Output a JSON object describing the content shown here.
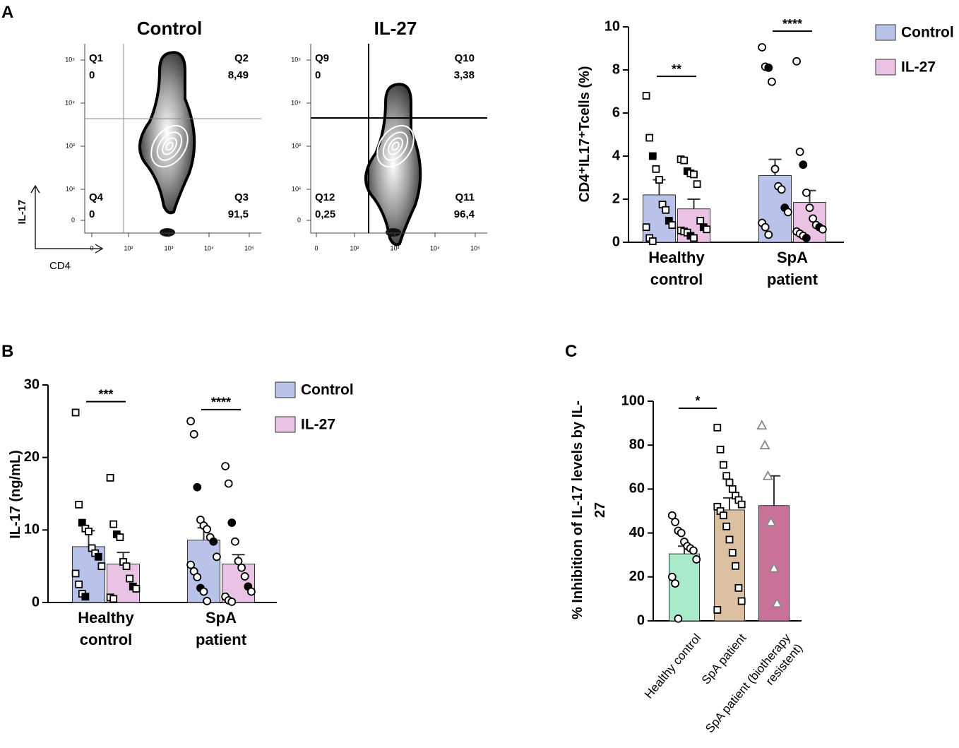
{
  "panels": [
    "A",
    "B",
    "C"
  ],
  "chart_data": [
    {
      "type": "flow",
      "title": "Control",
      "xlabel": "CD4",
      "ylabel": "IL-17",
      "xticks": [
        {
          "value": 0,
          "label": "0"
        },
        {
          "value": 100,
          "label": "10²"
        },
        {
          "value": 1000,
          "label": "10³"
        },
        {
          "value": 10000,
          "label": "10⁴"
        },
        {
          "value": 100000,
          "label": "10⁵"
        }
      ],
      "yticks": [
        {
          "value": 0,
          "label": "0"
        },
        {
          "value": 100,
          "label": "10²"
        },
        {
          "value": 1000,
          "label": "10³"
        },
        {
          "value": 10000,
          "label": "10⁴"
        },
        {
          "value": 100000,
          "label": "10⁵"
        }
      ],
      "quadrant_names": [
        "Q1",
        "Q2",
        "Q4",
        "Q3"
      ],
      "values": [
        0,
        8.49,
        0,
        91.5
      ],
      "value_labels": [
        "0",
        "8,49",
        "0",
        "91,5"
      ]
    },
    {
      "type": "flow",
      "title": "IL-27",
      "xticks": [
        {
          "value": 0,
          "label": "0"
        },
        {
          "value": 100,
          "label": "10²"
        },
        {
          "value": 1000,
          "label": "10³"
        },
        {
          "value": 10000,
          "label": "10⁴"
        },
        {
          "value": 100000,
          "label": "10⁵"
        }
      ],
      "yticks": [
        {
          "value": 0,
          "label": "0"
        },
        {
          "value": 100,
          "label": "10²"
        },
        {
          "value": 1000,
          "label": "10³"
        },
        {
          "value": 10000,
          "label": "10⁴"
        },
        {
          "value": 100000,
          "label": "10⁵"
        }
      ],
      "quadrant_names": [
        "Q9",
        "Q10",
        "Q12",
        "Q11"
      ],
      "values": [
        0,
        3.38,
        0.25,
        96.4
      ],
      "value_labels": [
        "0",
        "3,38",
        "0,25",
        "96,4"
      ]
    },
    {
      "type": "bar",
      "ylabel": "CD4⁺IL17⁺Tcells (%)",
      "categories": [
        "Healthy control",
        "SpA patient"
      ],
      "ylim": [
        0,
        10
      ],
      "yticks": [
        0,
        2,
        4,
        6,
        8,
        10
      ],
      "point_markers": [
        "square",
        "circle"
      ],
      "series": [
        {
          "name": "Control",
          "color": "#b9c3ea",
          "values": [
            2.2,
            3.1
          ],
          "errors": [
            0.7,
            0.75
          ],
          "points": [
            [
              6.8,
              4.85,
              4.0,
              3.4,
              2.9,
              1.75,
              1.5,
              1.0,
              0.8,
              0.7,
              0.2,
              0.05
            ],
            [
              9.05,
              8.15,
              8.1,
              7.45,
              3.4,
              2.6,
              2.45,
              1.6,
              1.4,
              0.9,
              0.7,
              0.35
            ]
          ]
        },
        {
          "name": "IL-27",
          "color": "#e9c2e4",
          "values": [
            1.55,
            1.85
          ],
          "errors": [
            0.45,
            0.55
          ],
          "points": [
            [
              3.85,
              3.8,
              3.3,
              3.2,
              3.15,
              2.7,
              1.0,
              0.7,
              0.6,
              0.55,
              0.5,
              0.45,
              0.3,
              0.2
            ],
            [
              8.4,
              4.2,
              3.6,
              2.3,
              1.6,
              1.1,
              0.8,
              0.7,
              0.6,
              0.5,
              0.4,
              0.3,
              0.2
            ]
          ]
        }
      ],
      "annotations": [
        {
          "text": "**",
          "category": 0,
          "y": 7.7
        },
        {
          "text": "****",
          "category": 1,
          "y": 9.8
        }
      ]
    },
    {
      "type": "bar",
      "ylabel": "IL-17 (ng/mL)",
      "categories": [
        "Healthy control",
        "SpA patient"
      ],
      "ylim": [
        0,
        30
      ],
      "yticks": [
        0,
        10,
        20,
        30
      ],
      "point_markers": [
        "square",
        "circle"
      ],
      "series": [
        {
          "name": "Control",
          "color": "#b9c3ea",
          "values": [
            7.7,
            8.6
          ],
          "errors": [
            2.2,
            1.7
          ],
          "points": [
            [
              26.2,
              13.5,
              11,
              10.2,
              9.8,
              7.5,
              6.8,
              6.3,
              5.0,
              4.0,
              2.5,
              1.2,
              0.8
            ],
            [
              25,
              23.2,
              15.9,
              11.4,
              10.6,
              10.1,
              9.0,
              8.4,
              6.3,
              5.2,
              4.3,
              3.5,
              2.0,
              1.5,
              0.2
            ]
          ]
        },
        {
          "name": "IL-27",
          "color": "#e9c2e4",
          "values": [
            5.3,
            5.3
          ],
          "errors": [
            1.6,
            1.3
          ],
          "points": [
            [
              17.2,
              10.8,
              9.4,
              9.0,
              5.6,
              5.0,
              3.3,
              2.2,
              1.9,
              0.7,
              0.5
            ],
            [
              18.8,
              16.4,
              11.0,
              8.4,
              5.7,
              4.8,
              3.6,
              2.2,
              1.5,
              0.8,
              0.3,
              0.1
            ]
          ]
        }
      ],
      "annotations": [
        {
          "text": "***",
          "category": 0,
          "y": 27.7
        },
        {
          "text": "****",
          "category": 1,
          "y": 26.6
        }
      ]
    },
    {
      "type": "bar",
      "ylabel": "% Inhibition of IL-17 levels by IL-27",
      "categories": [
        "Healthy control",
        "SpA patient",
        "SpA patient (biotherapy resistent)"
      ],
      "ylim": [
        0,
        100
      ],
      "yticks": [
        0,
        20,
        40,
        60,
        80,
        100
      ],
      "point_markers": [
        "circle",
        "square",
        "triangle"
      ],
      "series": [
        {
          "colors": [
            "#a9eacb",
            "#dcc0a2",
            "#c97199"
          ],
          "values": [
            30.5,
            50.5,
            52.5
          ],
          "errors": [
            3.5,
            5.5,
            13.5
          ],
          "points": [
            [
              48,
              45,
              41,
              40,
              36,
              34,
              33,
              32,
              28,
              20,
              17,
              1
            ],
            [
              88,
              78,
              71,
              66,
              63,
              60,
              57,
              55,
              53,
              52,
              50,
              48,
              43,
              37,
              31,
              25,
              15,
              9,
              5
            ],
            [
              89,
              80,
              66,
              45,
              24,
              8
            ]
          ]
        }
      ],
      "annotations": [
        {
          "text": "*",
          "categories": [
            0,
            1
          ],
          "y": 96.8
        }
      ]
    }
  ]
}
